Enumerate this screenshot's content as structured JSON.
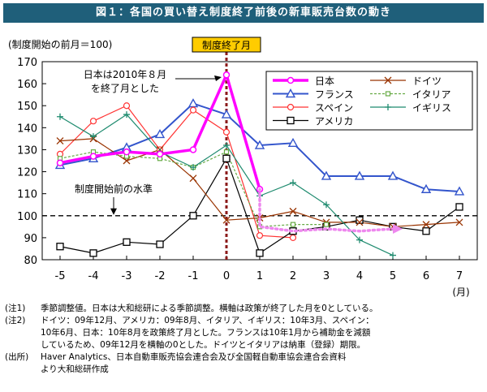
{
  "figure_title": "図１：各国の買い替え制度終了前後の新車販売台数の動き",
  "chart_data": {
    "type": "line",
    "ylabel": "(制度開始の前月＝100)",
    "x_unit": "(月)",
    "x": [
      -5,
      -4,
      -3,
      -2,
      -1,
      0,
      1,
      2,
      3,
      4,
      5,
      6,
      7
    ],
    "ylim": [
      80,
      170
    ],
    "yticks": [
      80,
      90,
      100,
      110,
      120,
      130,
      140,
      150,
      160,
      170
    ],
    "baseline": {
      "value": 100,
      "label": "制度開始前の水準"
    },
    "end_marker": {
      "x": 0,
      "label": "制度終了月"
    },
    "annotation": {
      "line1": "日本は2010年８月",
      "line2": "を終了月とした"
    },
    "forecast_japan": {
      "x": [
        1,
        2,
        3,
        4,
        5
      ],
      "values": [
        95,
        93,
        94,
        93,
        94
      ]
    },
    "grid": false,
    "legend_position": "top-right",
    "series": [
      {
        "name": "日本",
        "color": "#ff00ff",
        "marker": "circle",
        "values": [
          124,
          127,
          129,
          128,
          130,
          164,
          112,
          null,
          null,
          null,
          null,
          null,
          null
        ]
      },
      {
        "name": "フランス",
        "color": "#3355cc",
        "marker": "triangle",
        "values": [
          123,
          126,
          131,
          137,
          151,
          146,
          132,
          133,
          118,
          118,
          118,
          112,
          111
        ]
      },
      {
        "name": "スペイン",
        "color": "#ff3333",
        "marker": "circle-open",
        "values": [
          128,
          143,
          150,
          130,
          148,
          138,
          91,
          90,
          null,
          null,
          null,
          null,
          null
        ]
      },
      {
        "name": "アメリカ",
        "color": "#000000",
        "marker": "square-open",
        "values": [
          86,
          83,
          88,
          87,
          100,
          126,
          83,
          93,
          95,
          98,
          95,
          93,
          104
        ]
      },
      {
        "name": "ドイツ",
        "color": "#993300",
        "marker": "x",
        "values": [
          134,
          135,
          125,
          130,
          117,
          98,
          99,
          102,
          97,
          97,
          95,
          96,
          97
        ]
      },
      {
        "name": "イタリア",
        "color": "#66aa44",
        "marker": "square-small",
        "values": [
          126,
          129,
          127,
          126,
          122,
          129,
          95,
          96,
          96,
          null,
          null,
          null,
          null
        ]
      },
      {
        "name": "イギリス",
        "color": "#1f8b6f",
        "marker": "plus",
        "values": [
          145,
          136,
          146,
          129,
          122,
          132,
          109,
          115,
          105,
          89,
          82,
          null,
          null
        ]
      }
    ]
  },
  "notes": {
    "n1_tag": "(注1)",
    "n1_text": "季節調整値。日本は大和総研による季節調整。横軸は政策が終了した月を0としている。",
    "n2_tag": "(注2)",
    "n2_line1": "ドイツ：09年12月、アメリカ：09年8月、イタリア、イギリス：10年3月、スペイン：",
    "n2_line2": "10年6月、日本：10年8月を政策終了月とした。フランスは10年1月から補助金を減額",
    "n2_line3": "しているため、09年12月を横軸の0とした。ドイツとイタリアは納車（登録）期限。",
    "src_tag": "(出所)",
    "src_line1": "Haver Analytics、日本自動車販売協会連合会及び全国軽自動車協会連合会資料",
    "src_line2": "より大和総研作成"
  }
}
